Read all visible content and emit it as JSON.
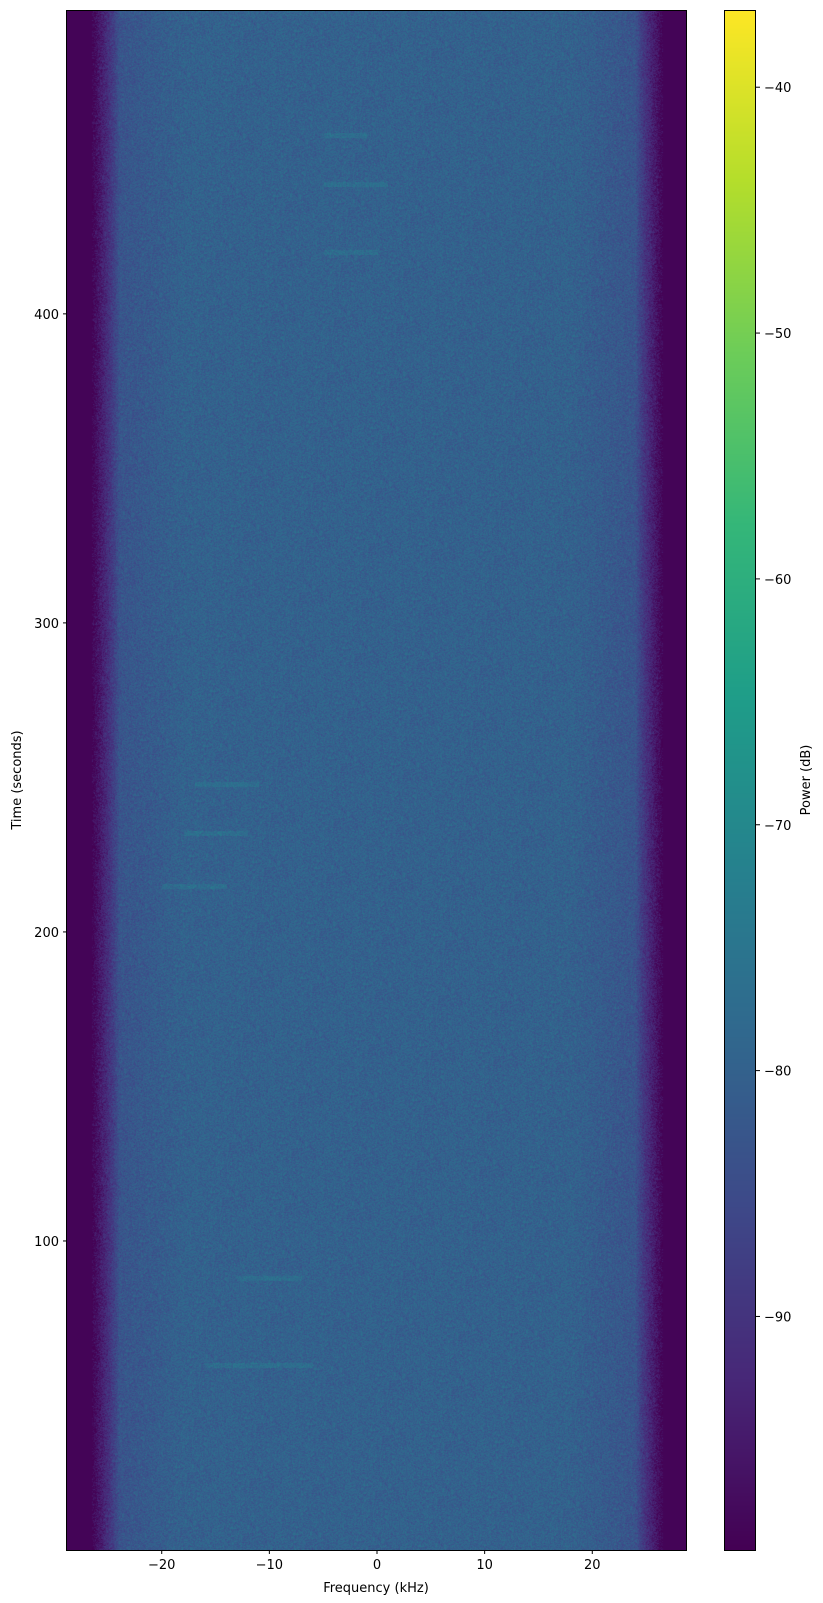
{
  "chart_data": {
    "type": "heatmap",
    "title": "",
    "xlabel": "Frequency (kHz)",
    "ylabel": "Time (seconds)",
    "colorbar_label": "Power (dB)",
    "colormap": "viridis",
    "xlim": [
      -28.8,
      28.8
    ],
    "ylim": [
      0,
      498
    ],
    "clim": [
      -99.5,
      -36.9
    ],
    "xticks": [
      -20,
      -10,
      0,
      10,
      20
    ],
    "xtick_labels": [
      "−20",
      "−10",
      "0",
      "10",
      "20"
    ],
    "yticks": [
      100,
      200,
      300,
      400
    ],
    "ytick_labels": [
      "100",
      "200",
      "300",
      "400"
    ],
    "cticks": [
      -90,
      -80,
      -70,
      -60,
      -50,
      -40
    ],
    "ctick_labels": [
      "−90",
      "−80",
      "−70",
      "−60",
      "−50",
      "−40"
    ],
    "passband_level_db": -80,
    "edge_level_db": -99,
    "passband_edges_khz": [
      -24,
      24
    ],
    "rolloff_edges_khz": [
      -26.5,
      26.5
    ],
    "faint_streaks": [
      {
        "t": 60,
        "f": [
          -16,
          -6
        ]
      },
      {
        "t": 88,
        "f": [
          -13,
          -7
        ]
      },
      {
        "t": 215,
        "f": [
          -20,
          -14
        ]
      },
      {
        "t": 232,
        "f": [
          -18,
          -12
        ]
      },
      {
        "t": 248,
        "f": [
          -17,
          -11
        ]
      },
      {
        "t": 420,
        "f": [
          -5,
          0
        ]
      },
      {
        "t": 442,
        "f": [
          -5,
          1
        ]
      },
      {
        "t": 458,
        "f": [
          -5,
          -1
        ]
      }
    ]
  }
}
